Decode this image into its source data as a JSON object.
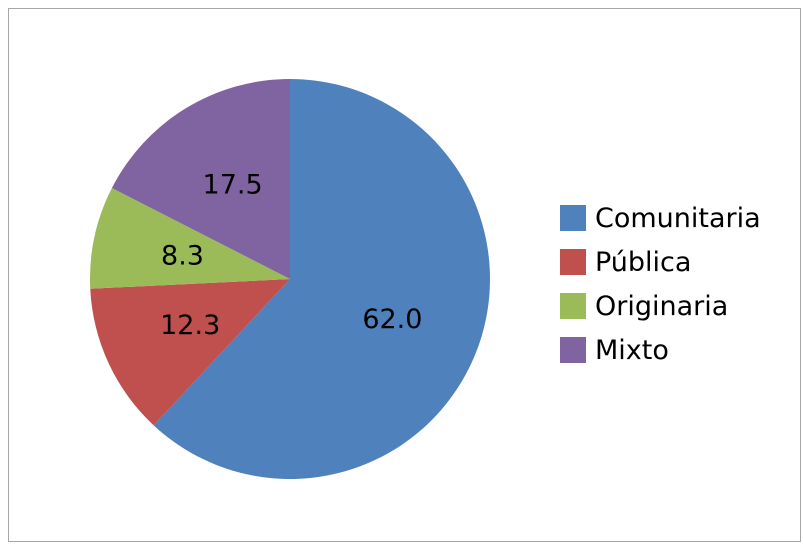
{
  "chart_data": {
    "type": "pie",
    "categories": [
      "Comunitaria",
      "Pública",
      "Originaria",
      "Mixto"
    ],
    "values": [
      62.0,
      12.3,
      8.3,
      17.5
    ],
    "value_labels": [
      "62.0",
      "12.3",
      "8.3",
      "17.5"
    ],
    "colors": [
      "#4f81bd",
      "#c0504d",
      "#9bbb59",
      "#8064a2"
    ],
    "start_angle_deg": 0,
    "direction": "clockwise",
    "legend": {
      "position": "right",
      "entries": [
        "Comunitaria",
        "Pública",
        "Originaria",
        "Mixto"
      ]
    },
    "title": ""
  }
}
